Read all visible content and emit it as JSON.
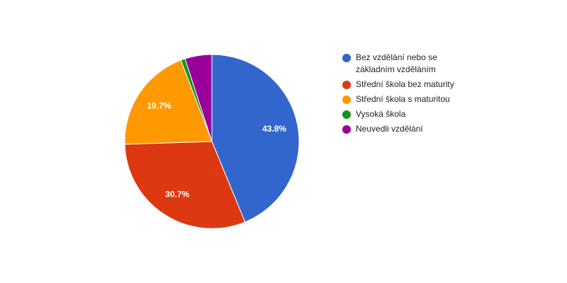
{
  "chart_data": {
    "type": "pie",
    "categories": [
      "Bez vzdělání nebo se základním vzděláním",
      "Střední škola bez maturity",
      "Střední škola s maturitou",
      "Vysoká škola",
      "Neuvedli vzdělání"
    ],
    "values": [
      43.8,
      30.7,
      19.7,
      0.8,
      5.0
    ],
    "value_labels": [
      "43.8%",
      "30.7%",
      "19.7%",
      null,
      null
    ],
    "colors": [
      "#3366cc",
      "#dc3912",
      "#ff9900",
      "#109618",
      "#990099"
    ]
  }
}
